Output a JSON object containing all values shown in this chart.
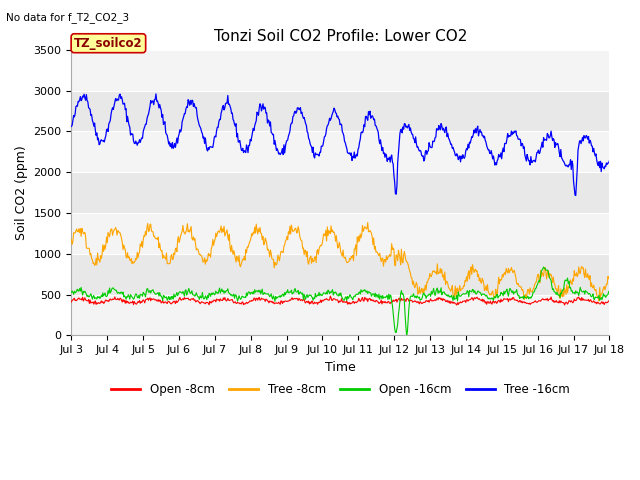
{
  "title": "Tonzi Soil CO2 Profile: Lower CO2",
  "subtitle": "No data for f_T2_CO2_3",
  "ylabel": "Soil CO2 (ppm)",
  "xlabel": "Time",
  "legend_label": "TZ_soilco2",
  "ylim": [
    0,
    3500
  ],
  "yticks": [
    0,
    500,
    1000,
    1500,
    2000,
    2500,
    3000,
    3500
  ],
  "xtick_labels": [
    "Jul 3",
    "Jul 4",
    "Jul 5",
    "Jul 6",
    "Jul 7",
    "Jul 8",
    "Jul 9",
    "Jul 10",
    "Jul 11",
    "Jul 12",
    "Jul 13",
    "Jul 14",
    "Jul 15",
    "Jul 16",
    "Jul 17",
    "Jul 18"
  ],
  "series_colors": {
    "open_8cm": "#ff0000",
    "tree_8cm": "#ffa500",
    "open_16cm": "#00cc00",
    "tree_16cm": "#0000ff"
  },
  "series_labels": {
    "open_8cm": "Open -8cm",
    "tree_8cm": "Tree -8cm",
    "open_16cm": "Open -16cm",
    "tree_16cm": "Tree -16cm"
  },
  "background_color": "#ffffff",
  "plot_bg_color": "#e8e8e8",
  "band_color": "#f4f4f4",
  "grid_color": "#ffffff",
  "title_fontsize": 11,
  "axis_fontsize": 9,
  "tick_fontsize": 8,
  "legend_box_color": "#ffff99",
  "legend_box_edge": "#cc0000"
}
